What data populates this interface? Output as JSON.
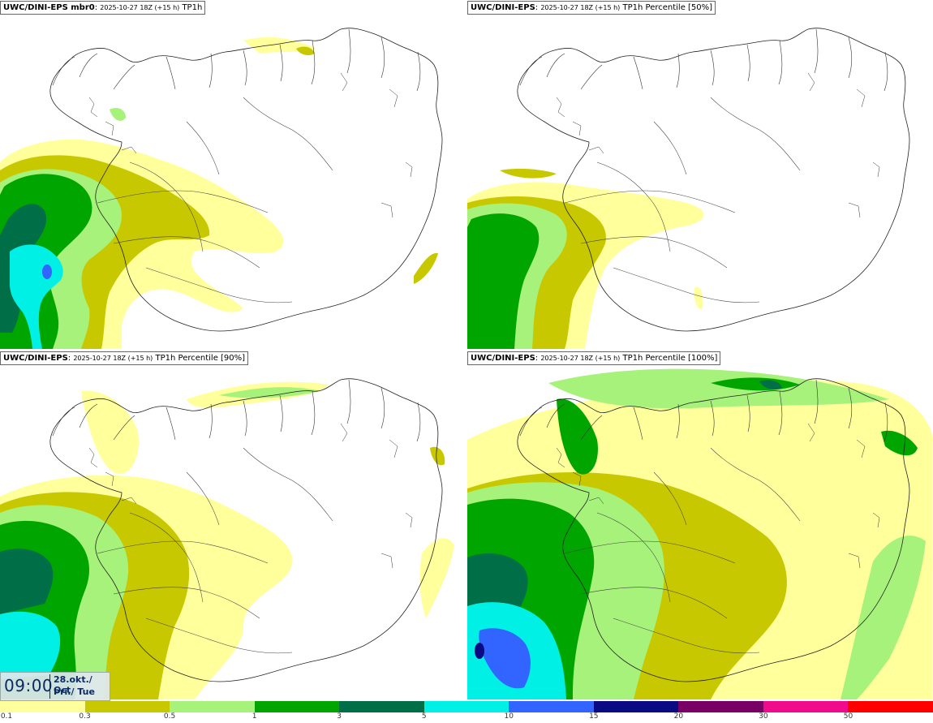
{
  "panels": [
    {
      "model": "UWC/DINI-EPS mbr0",
      "date": "2025-10-27 18Z (+15 h)",
      "param": "TP1h"
    },
    {
      "model": "UWC/DINI-EPS",
      "date": "2025-10-27 18Z (+15 h)",
      "param": "TP1h Percentile [50%]"
    },
    {
      "model": "UWC/DINI-EPS",
      "date": "2025-10-27 18Z (+15 h)",
      "param": "TP1h Percentile [90%]"
    },
    {
      "model": "UWC/DINI-EPS",
      "date": "2025-10-27 18Z (+15 h)",
      "param": "TP1h Percentile [100%]"
    }
  ],
  "time": {
    "clock": "09:00",
    "date_line1": "28.okt./ Oct",
    "date_line2": "Þri./ Tue"
  },
  "legend": {
    "ticks": [
      "0.1",
      "0.3",
      "0.5",
      "1",
      "3",
      "5",
      "10",
      "15",
      "20",
      "30",
      "50"
    ],
    "colors": [
      "#ffff9c",
      "#c8c800",
      "#a6f27a",
      "#00a500",
      "#006e46",
      "#00f0e6",
      "#3264ff",
      "#0a0a82",
      "#780064",
      "#f00a8c",
      "#ff0000"
    ]
  },
  "colors": {
    "lvl1": "#ffff9c",
    "lvl2": "#c8c800",
    "lvl3": "#a6f27a",
    "lvl4": "#00a500",
    "lvl5": "#006e46",
    "lvl6": "#00f0e6",
    "lvl7": "#3264ff",
    "lvl8": "#0a0a82"
  }
}
